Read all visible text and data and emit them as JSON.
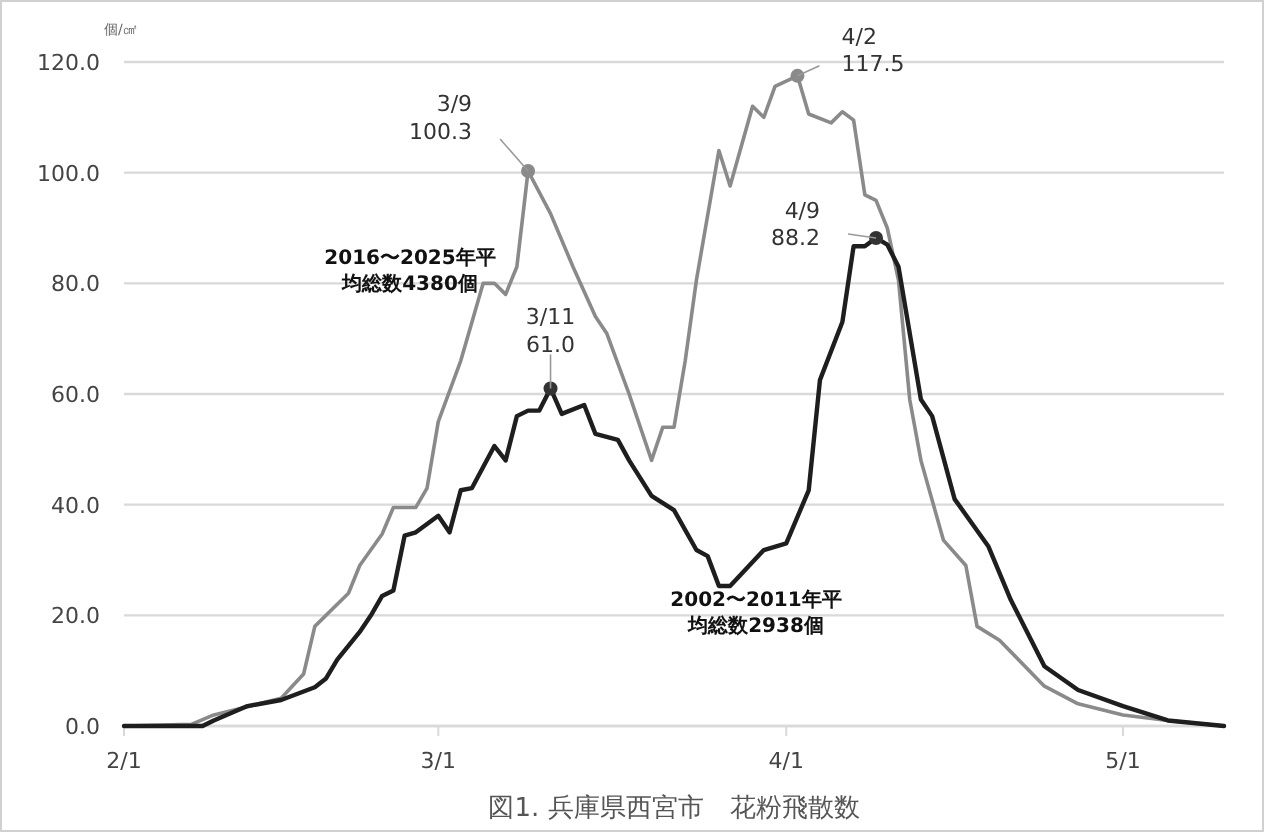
{
  "chart_data": {
    "type": "line",
    "title": "図1. 兵庫県西宮市　花粉飛散数",
    "ylabel": "個/㎠",
    "xlim": [
      "--02-01",
      "--05-10"
    ],
    "xticks": [
      {
        "value": "--02-01",
        "label": "2/1"
      },
      {
        "value": "--03-01",
        "label": "3/1"
      },
      {
        "value": "--04-01",
        "label": "4/1"
      },
      {
        "value": "--05-01",
        "label": "5/1"
      }
    ],
    "ylim": [
      0,
      120
    ],
    "yticks": [
      {
        "value": 0,
        "label": "0.0"
      },
      {
        "value": 20,
        "label": "20.0"
      },
      {
        "value": 40,
        "label": "40.0"
      },
      {
        "value": 60,
        "label": "60.0"
      },
      {
        "value": 80,
        "label": "80.0"
      },
      {
        "value": 100,
        "label": "100.0"
      },
      {
        "value": 120,
        "label": "120.0"
      }
    ],
    "grid": "y",
    "marker": "none",
    "line_style": "solid",
    "series": [
      {
        "name": "2016〜2025年平均総数4380個",
        "color": "#8a8a8a",
        "x": [
          "--02-01",
          "--02-07",
          "--02-09",
          "--02-13",
          "--02-15",
          "--02-17",
          "--02-18",
          "--02-20",
          "--02-21",
          "--02-22",
          "--02-24",
          "--02-25",
          "--02-27",
          "--02-28",
          "--03-01",
          "--03-03",
          "--03-05",
          "--03-06",
          "--03-07",
          "--03-08",
          "--03-09",
          "--03-11",
          "--03-13",
          "--03-15",
          "--03-16",
          "--03-18",
          "--03-20",
          "--03-21",
          "--03-22",
          "--03-23",
          "--03-24",
          "--03-26",
          "--03-27",
          "--03-29",
          "--03-30",
          "--03-31",
          "--04-02",
          "--04-03",
          "--04-05",
          "--04-06",
          "--04-07",
          "--04-08",
          "--04-09",
          "--04-10",
          "--04-11",
          "--04-12",
          "--04-13",
          "--04-15",
          "--04-17",
          "--04-18",
          "--04-20",
          "--04-24",
          "--04-27",
          "--05-01",
          "--05-05",
          "--05-10"
        ],
        "values": [
          0,
          0.3,
          2,
          4,
          5,
          9.4,
          18,
          22,
          24,
          29,
          34.7,
          39.5,
          39.5,
          43,
          55,
          66,
          80,
          80,
          78,
          83,
          100.3,
          92.6,
          83,
          74,
          71,
          60,
          48,
          54,
          54,
          66,
          80.6,
          104,
          97.6,
          112,
          110,
          115.6,
          117.5,
          110.6,
          109,
          111,
          109.5,
          96,
          95,
          90,
          80.6,
          59,
          48,
          33.6,
          29,
          18,
          15.5,
          7.2,
          4,
          2,
          1,
          0
        ]
      },
      {
        "name": "2002〜2011年平均総数2938個",
        "color": "#1e1e1e",
        "x": [
          "--02-01",
          "--02-08",
          "--02-09",
          "--02-12",
          "--02-15",
          "--02-18",
          "--02-19",
          "--02-20",
          "--02-22",
          "--02-23",
          "--02-24",
          "--02-25",
          "--02-26",
          "--02-27",
          "--03-01",
          "--03-02",
          "--03-03",
          "--03-04",
          "--03-06",
          "--03-07",
          "--03-08",
          "--03-09",
          "--03-10",
          "--03-11",
          "--03-12",
          "--03-14",
          "--03-15",
          "--03-17",
          "--03-18",
          "--03-20",
          "--03-22",
          "--03-24",
          "--03-25",
          "--03-26",
          "--03-27",
          "--03-30",
          "--04-01",
          "--04-03",
          "--04-04",
          "--04-06",
          "--04-07",
          "--04-08",
          "--04-09",
          "--04-10",
          "--04-11",
          "--04-13",
          "--04-14",
          "--04-16",
          "--04-19",
          "--04-21",
          "--04-24",
          "--04-27",
          "--05-01",
          "--05-05",
          "--05-10"
        ],
        "values": [
          0,
          0,
          1,
          3.6,
          4.7,
          7,
          8.6,
          12,
          17,
          20,
          23.5,
          24.5,
          34.4,
          35,
          38,
          35,
          42.6,
          43,
          50.6,
          48,
          56,
          57,
          57,
          61,
          56.4,
          58,
          52.8,
          51.7,
          48,
          41.6,
          39,
          31.8,
          30.7,
          25.3,
          25.3,
          31.8,
          33,
          42.6,
          62.5,
          73,
          86.7,
          86.7,
          88.2,
          87,
          83,
          59,
          56,
          41,
          32.5,
          22.8,
          10.8,
          6.5,
          3.6,
          1,
          0
        ]
      }
    ],
    "annotations": [
      {
        "text": "3/9\n100.3",
        "x": "--03-09",
        "y": 100.3
      },
      {
        "text": "4/2\n117.5",
        "x": "--04-02",
        "y": 117.5
      },
      {
        "text": "3/11\n61.0",
        "x": "--03-11",
        "y": 61.0
      },
      {
        "text": "4/9\n88.2",
        "x": "--04-09",
        "y": 88.2
      }
    ]
  }
}
